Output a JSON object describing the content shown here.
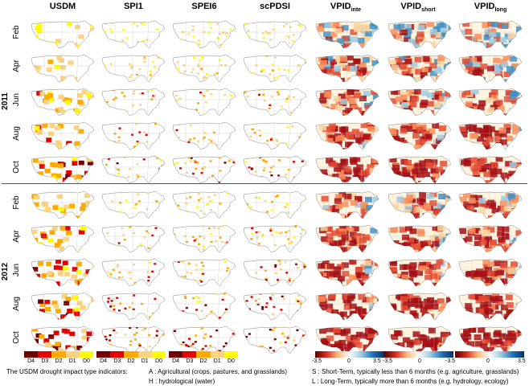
{
  "columns": [
    {
      "label": "USDM",
      "sub": ""
    },
    {
      "label": "SPI1",
      "sub": ""
    },
    {
      "label": "SPEI6",
      "sub": ""
    },
    {
      "label": "scPDSI",
      "sub": ""
    },
    {
      "label": "VPID",
      "sub": "inte"
    },
    {
      "label": "VPID",
      "sub": "short"
    },
    {
      "label": "VPID",
      "sub": "long"
    }
  ],
  "years": [
    "2011",
    "2012"
  ],
  "months": [
    "Feb",
    "Apr",
    "Jun",
    "Aug",
    "Oct",
    "Feb",
    "Apr",
    "Jun",
    "Aug",
    "Oct"
  ],
  "legend": {
    "usdm_classes": [
      "D4",
      "D3",
      "D2",
      "D1",
      "D0"
    ],
    "class_colors": [
      "#730000",
      "#e60000",
      "#ffaa00",
      "#fcd37f",
      "#ffff00"
    ],
    "vpid_min": "-3.5",
    "vpid_mid": "0",
    "vpid_max": "3.5",
    "vpid_colors": [
      "#5c0000",
      "#d7301f",
      "#fdbb84",
      "#ffffff",
      "#9ecae1",
      "#2171b5",
      "#08306b"
    ]
  },
  "notes": {
    "impact_title": "The USDM drought impact type indicators:",
    "a": "A : Agricultural (crops, pastures, and grasslands)",
    "h": "H : hydrological (water)",
    "s": "S : Short-Term, typically less than 6 months (e.g. agriculture, grasslands)",
    "l": "L : Long-Term, typically more than 6 months (e.g. hydrology, ecology)"
  }
}
